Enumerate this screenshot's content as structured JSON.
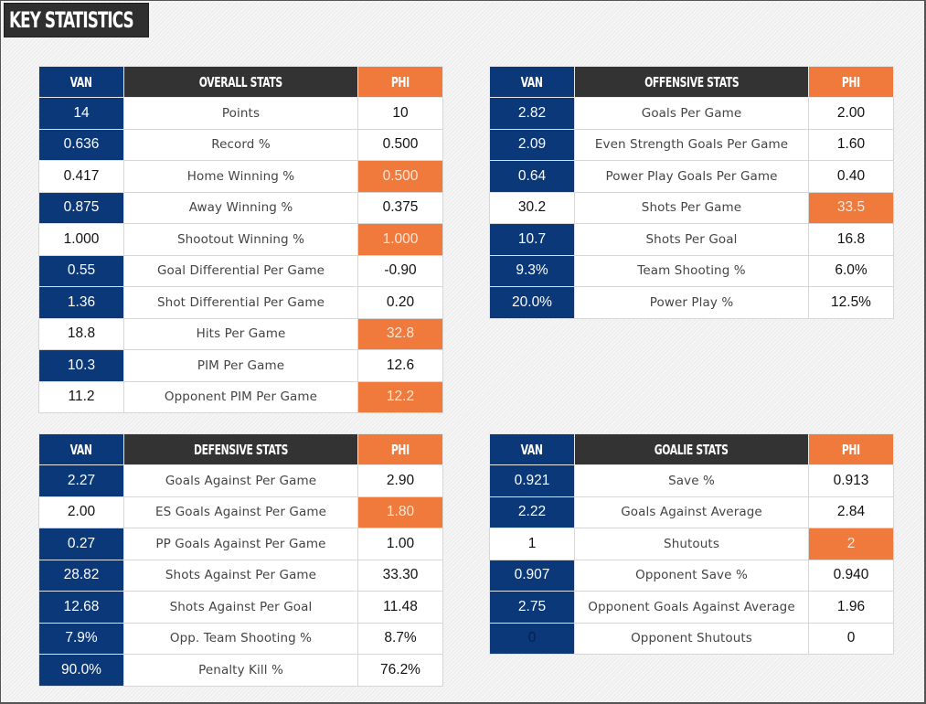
{
  "page": {
    "title": "KEY STATISTICS"
  },
  "colors": {
    "van_blue": "#0a3878",
    "phi_orange": "#f07a3c",
    "header_dark": "#333333"
  },
  "teams": {
    "left": "VAN",
    "right": "PHI"
  },
  "tables": {
    "overall": {
      "title": "OVERALL STATS",
      "van_label": "VAN",
      "phi_label": "PHI",
      "rows": [
        {
          "stat": "Points",
          "van": "14",
          "phi": "10",
          "leader": "van"
        },
        {
          "stat": "Record %",
          "van": "0.636",
          "phi": "0.500",
          "leader": "van"
        },
        {
          "stat": "Home Winning %",
          "van": "0.417",
          "phi": "0.500",
          "leader": "phi"
        },
        {
          "stat": "Away Winning %",
          "van": "0.875",
          "phi": "0.375",
          "leader": "van"
        },
        {
          "stat": "Shootout Winning %",
          "van": "1.000",
          "phi": "1.000",
          "leader": "phi"
        },
        {
          "stat": "Goal Differential Per Game",
          "van": "0.55",
          "phi": "-0.90",
          "leader": "van"
        },
        {
          "stat": "Shot Differential Per Game",
          "van": "1.36",
          "phi": "0.20",
          "leader": "van"
        },
        {
          "stat": "Hits Per Game",
          "van": "18.8",
          "phi": "32.8",
          "leader": "phi"
        },
        {
          "stat": "PIM Per Game",
          "van": "10.3",
          "phi": "12.6",
          "leader": "van"
        },
        {
          "stat": "Opponent PIM Per Game",
          "van": "11.2",
          "phi": "12.2",
          "leader": "phi"
        }
      ]
    },
    "offensive": {
      "title": "OFFENSIVE STATS",
      "van_label": "VAN",
      "phi_label": "PHI",
      "rows": [
        {
          "stat": "Goals Per Game",
          "van": "2.82",
          "phi": "2.00",
          "leader": "van"
        },
        {
          "stat": "Even Strength Goals Per Game",
          "van": "2.09",
          "phi": "1.60",
          "leader": "van"
        },
        {
          "stat": "Power Play Goals Per Game",
          "van": "0.64",
          "phi": "0.40",
          "leader": "van"
        },
        {
          "stat": "Shots Per Game",
          "van": "30.2",
          "phi": "33.5",
          "leader": "phi"
        },
        {
          "stat": "Shots Per Goal",
          "van": "10.7",
          "phi": "16.8",
          "leader": "van"
        },
        {
          "stat": "Team Shooting %",
          "van": "9.3%",
          "phi": "6.0%",
          "leader": "van"
        },
        {
          "stat": "Power Play %",
          "van": "20.0%",
          "phi": "12.5%",
          "leader": "van"
        }
      ]
    },
    "defensive": {
      "title": "DEFENSIVE STATS",
      "van_label": "VAN",
      "phi_label": "PHI",
      "rows": [
        {
          "stat": "Goals Against Per Game",
          "van": "2.27",
          "phi": "2.90",
          "leader": "van"
        },
        {
          "stat": "ES Goals Against Per Game",
          "van": "2.00",
          "phi": "1.80",
          "leader": "phi"
        },
        {
          "stat": "PP Goals Against Per Game",
          "van": "0.27",
          "phi": "1.00",
          "leader": "van"
        },
        {
          "stat": "Shots Against Per Game",
          "van": "28.82",
          "phi": "33.30",
          "leader": "van"
        },
        {
          "stat": "Shots Against Per Goal",
          "van": "12.68",
          "phi": "11.48",
          "leader": "van"
        },
        {
          "stat": "Opp. Team Shooting %",
          "van": "7.9%",
          "phi": "8.7%",
          "leader": "van"
        },
        {
          "stat": "Penalty Kill %",
          "van": "90.0%",
          "phi": "76.2%",
          "leader": "van"
        }
      ]
    },
    "goalie": {
      "title": "GOALIE STATS",
      "van_label": "VAN",
      "phi_label": "PHI",
      "rows": [
        {
          "stat": "Save %",
          "van": "0.921",
          "phi": "0.913",
          "leader": "van"
        },
        {
          "stat": "Goals Against Average",
          "van": "2.22",
          "phi": "2.84",
          "leader": "van"
        },
        {
          "stat": "Shutouts",
          "van": "1",
          "phi": "2",
          "leader": "phi"
        },
        {
          "stat": "Opponent Save %",
          "van": "0.907",
          "phi": "0.940",
          "leader": "van"
        },
        {
          "stat": "Opponent Goals Against Average",
          "van": "2.75",
          "phi": "1.96",
          "leader": "van"
        },
        {
          "stat": "Opponent Shutouts",
          "van": "0",
          "phi": "0",
          "leader": "van_dark"
        }
      ]
    }
  }
}
